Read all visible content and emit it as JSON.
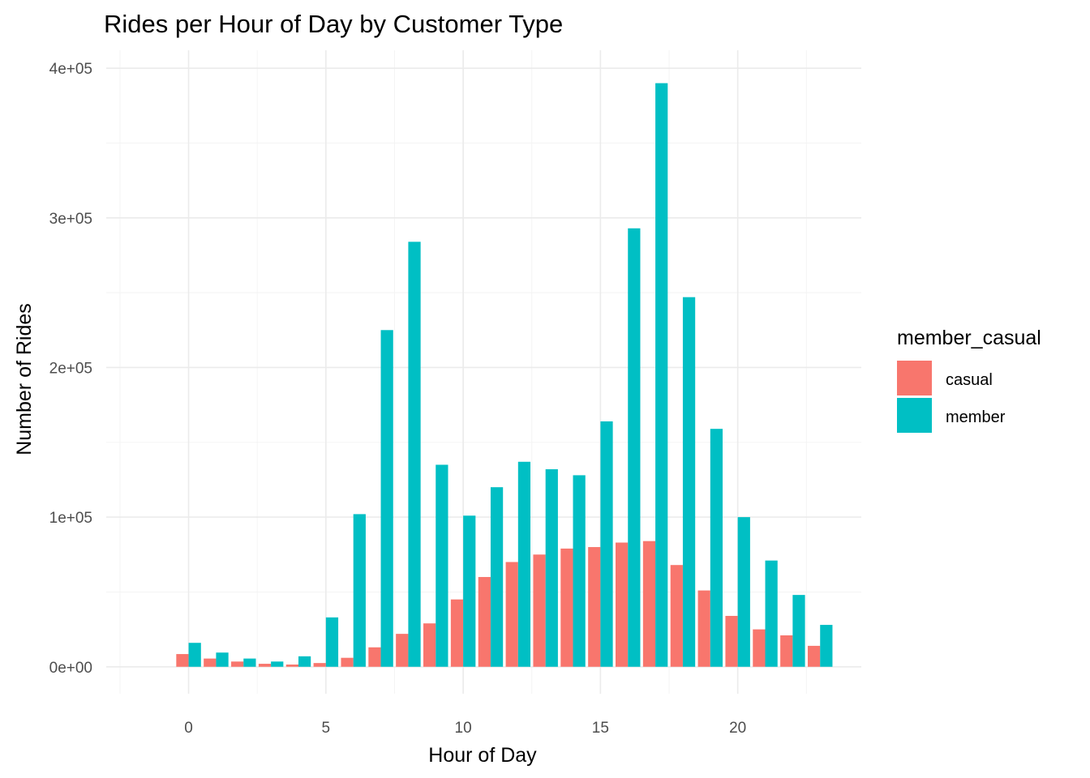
{
  "chart_data": {
    "type": "bar",
    "title": "Rides per Hour of Day by Customer Type",
    "xlabel": "Hour of Day",
    "ylabel": "Number of Rides",
    "x": [
      0,
      1,
      2,
      3,
      4,
      5,
      6,
      7,
      8,
      9,
      10,
      11,
      12,
      13,
      14,
      15,
      16,
      17,
      18,
      19,
      20,
      21,
      22,
      23
    ],
    "xlim": [
      -3,
      24.5
    ],
    "ylim": [
      -18000,
      412000
    ],
    "x_ticks": [
      0,
      5,
      10,
      15,
      20
    ],
    "x_tick_labels": [
      "0",
      "5",
      "10",
      "15",
      "20"
    ],
    "y_ticks": [
      0,
      100000,
      200000,
      300000,
      400000
    ],
    "y_tick_labels": [
      "0e+00",
      "1e+05",
      "2e+05",
      "3e+05",
      "4e+05"
    ],
    "grid": true,
    "legend": {
      "title": "member_casual",
      "position": "right"
    },
    "series": [
      {
        "name": "casual",
        "color": "#F8766D",
        "values": [
          8500,
          5500,
          3500,
          2000,
          1500,
          2500,
          6000,
          13000,
          22000,
          29000,
          45000,
          60000,
          70000,
          75000,
          79000,
          80000,
          83000,
          84000,
          68000,
          51000,
          34000,
          25000,
          21000,
          14000
        ]
      },
      {
        "name": "member",
        "color": "#00BFC4",
        "values": [
          16000,
          9500,
          5500,
          3500,
          7000,
          33000,
          102000,
          225000,
          284000,
          135000,
          101000,
          120000,
          137000,
          132000,
          128000,
          164000,
          293000,
          390000,
          247000,
          159000,
          100000,
          71000,
          48000,
          28000
        ]
      }
    ]
  }
}
